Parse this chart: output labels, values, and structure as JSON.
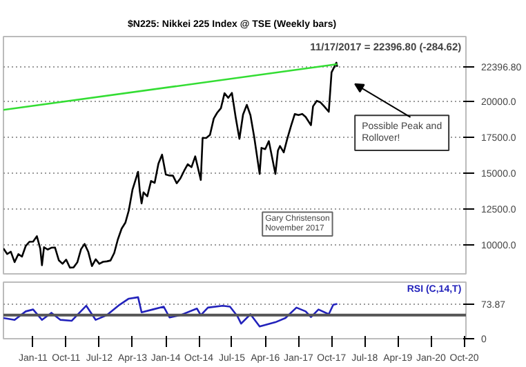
{
  "chart_data": [
    {
      "type": "line",
      "title": "$N225:  Nikkei 225 Index @ TSE  (Weekly bars)",
      "annotations": [
        "11/17/2017 = 22396.80 (-284.62)",
        "Possible Peak and Rollover!",
        "Gary Christenson",
        "November 2017"
      ],
      "x": [
        "2010-05-01",
        "2010-06-01",
        "2010-07-01",
        "2010-08-01",
        "2010-09-01",
        "2010-10-01",
        "2010-11-01",
        "2010-12-01",
        "2011-01-01",
        "2011-02-01",
        "2011-03-01",
        "2011-03-15",
        "2011-04-01",
        "2011-05-01",
        "2011-06-01",
        "2011-07-01",
        "2011-08-01",
        "2011-09-01",
        "2011-10-01",
        "2011-11-01",
        "2011-12-01",
        "2012-01-01",
        "2012-02-01",
        "2012-03-01",
        "2012-04-01",
        "2012-05-01",
        "2012-06-01",
        "2012-07-01",
        "2012-08-01",
        "2012-09-01",
        "2012-10-01",
        "2012-11-01",
        "2012-12-01",
        "2013-01-01",
        "2013-02-01",
        "2013-03-01",
        "2013-04-01",
        "2013-05-17",
        "2013-05-31",
        "2013-06-15",
        "2013-07-01",
        "2013-08-01",
        "2013-09-01",
        "2013-10-01",
        "2013-11-01",
        "2013-12-01",
        "2014-01-01",
        "2014-02-01",
        "2014-03-01",
        "2014-04-01",
        "2014-05-01",
        "2014-06-01",
        "2014-07-01",
        "2014-08-01",
        "2014-09-01",
        "2014-10-17",
        "2014-11-01",
        "2014-12-01",
        "2015-01-01",
        "2015-02-01",
        "2015-03-01",
        "2015-04-01",
        "2015-05-01",
        "2015-06-01",
        "2015-07-01",
        "2015-08-01",
        "2015-09-01",
        "2015-10-01",
        "2015-11-01",
        "2015-12-01",
        "2016-01-01",
        "2016-02-15",
        "2016-03-01",
        "2016-04-01",
        "2016-05-01",
        "2016-06-24",
        "2016-07-15",
        "2016-08-01",
        "2016-09-01",
        "2016-10-01",
        "2016-11-01",
        "2016-12-01",
        "2017-01-01",
        "2017-02-01",
        "2017-03-01",
        "2017-04-14",
        "2017-05-01",
        "2017-06-01",
        "2017-07-01",
        "2017-08-01",
        "2017-09-08",
        "2017-10-01",
        "2017-11-10",
        "2017-11-17"
      ],
      "series": [
        {
          "color": "#000000",
          "values": [
            9770,
            9380,
            9540,
            8820,
            9370,
            9200,
            9940,
            10230,
            10240,
            10620,
            9760,
            8600,
            9850,
            9690,
            9820,
            9830,
            8950,
            8700,
            8990,
            8430,
            8450,
            8800,
            9720,
            10080,
            9520,
            8540,
            9010,
            8700,
            8840,
            8870,
            8930,
            9450,
            10400,
            11140,
            11560,
            12400,
            13860,
            15100,
            13770,
            12900,
            13670,
            13390,
            14460,
            14330,
            15660,
            16290,
            14910,
            14840,
            14830,
            14300,
            14630,
            15160,
            15620,
            15420,
            16170,
            14530,
            17450,
            17450,
            17670,
            18800,
            19200,
            19520,
            20560,
            20240,
            20580,
            18890,
            17390,
            19080,
            19750,
            19030,
            17520,
            14950,
            16760,
            16670,
            17230,
            14950,
            16570,
            16890,
            16450,
            17420,
            18310,
            19110,
            19040,
            19120,
            18910,
            18340,
            19650,
            20030,
            19930,
            19650,
            19270,
            22010,
            22680,
            22396.8
          ]
        },
        {
          "type": "line",
          "color": "#33dd33",
          "x": [
            "2010-05-01",
            "2017-11-17"
          ],
          "values": [
            19400,
            22580
          ]
        }
      ],
      "xlim": [
        "2010-05-01",
        "2020-10-15"
      ],
      "ylim": [
        8000,
        24500
      ],
      "yticks": [
        {
          "value": 10000,
          "label": "10000.0"
        },
        {
          "value": 12500,
          "label": "12500.0"
        },
        {
          "value": 15000,
          "label": "15000.0"
        },
        {
          "value": 17500,
          "label": "17500.0"
        },
        {
          "value": 20000,
          "label": "20000.0"
        },
        {
          "value": 22396.8,
          "label": "22396.80"
        }
      ],
      "tick_labels": "y",
      "grid": "y"
    },
    {
      "type": "line",
      "title": "RSI (C,14,T)",
      "x": [
        "2010-05-01",
        "2010-08-01",
        "2010-11-01",
        "2011-01-01",
        "2011-03-15",
        "2011-06-01",
        "2011-08-15",
        "2011-11-15",
        "2012-03-15",
        "2012-06-01",
        "2012-09-01",
        "2012-12-15",
        "2013-03-01",
        "2013-05-17",
        "2013-06-15",
        "2013-09-15",
        "2013-12-15",
        "2014-02-01",
        "2014-05-01",
        "2014-09-15",
        "2014-10-17",
        "2014-12-15",
        "2015-04-15",
        "2015-06-15",
        "2015-08-15",
        "2015-09-15",
        "2015-12-01",
        "2016-02-15",
        "2016-06-24",
        "2016-09-15",
        "2016-12-15",
        "2017-03-01",
        "2017-04-14",
        "2017-06-15",
        "2017-09-08",
        "2017-10-15",
        "2017-11-17"
      ],
      "series": [
        {
          "color": "#2222bb",
          "values": [
            44,
            40,
            58,
            62,
            40,
            55,
            40,
            38,
            70,
            40,
            50,
            72,
            85,
            88,
            56,
            62,
            68,
            45,
            50,
            64,
            50,
            66,
            70,
            68,
            48,
            32,
            52,
            26,
            35,
            44,
            66,
            58,
            46,
            62,
            52,
            72,
            73.87
          ]
        }
      ],
      "xlim": [
        "2010-05-01",
        "2020-10-15"
      ],
      "xticks": [
        {
          "value": "2011-01-01",
          "label": "Jan-11"
        },
        {
          "value": "2011-10-01",
          "label": "Oct-11"
        },
        {
          "value": "2012-07-01",
          "label": "Jul-12"
        },
        {
          "value": "2013-04-01",
          "label": "Apr-13"
        },
        {
          "value": "2014-01-01",
          "label": "Jan-14"
        },
        {
          "value": "2014-10-01",
          "label": "Oct-14"
        },
        {
          "value": "2015-07-01",
          "label": "Jul-15"
        },
        {
          "value": "2016-04-01",
          "label": "Apr-16"
        },
        {
          "value": "2017-01-01",
          "label": "Jan-17"
        },
        {
          "value": "2017-10-01",
          "label": "Oct-17"
        },
        {
          "value": "2018-07-01",
          "label": "Jul-18"
        },
        {
          "value": "2019-04-01",
          "label": "Apr-19"
        },
        {
          "value": "2020-01-01",
          "label": "Jan-20"
        },
        {
          "value": "2020-10-01",
          "label": "Oct-20"
        }
      ],
      "ylim": [
        0,
        120
      ],
      "yticks": [
        0,
        {
          "value": 73.87,
          "label": "73.87"
        }
      ],
      "ref_lines": [
        {
          "axis": "y",
          "value": 50,
          "color": "#555555"
        }
      ],
      "grid": "y"
    }
  ]
}
